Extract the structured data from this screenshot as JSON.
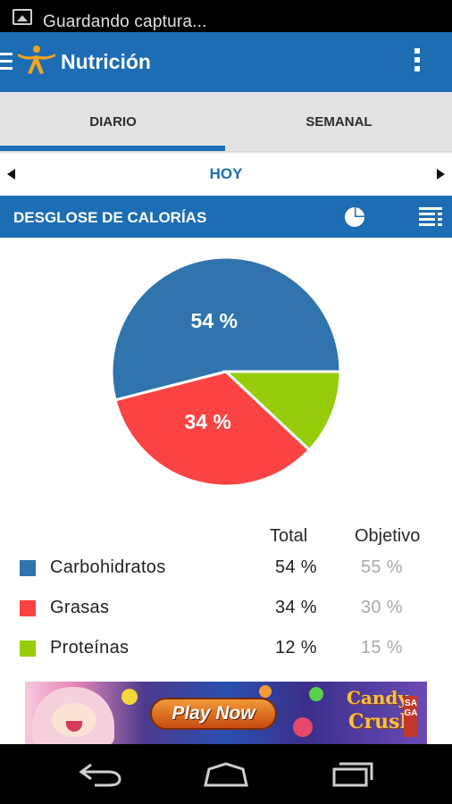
{
  "status_bar": {
    "notification_text": "Guardando captura..."
  },
  "app_bar": {
    "title": "Nutrición",
    "brand_color": "#1c6db3",
    "logo_color": "#f4a21c"
  },
  "tabs": [
    {
      "label": "DIARIO",
      "selected": true
    },
    {
      "label": "SEMANAL",
      "selected": false
    }
  ],
  "date_nav": {
    "label": "HOY"
  },
  "section": {
    "title": "DESGLOSE DE CALORÍAS"
  },
  "chart_data": {
    "type": "pie",
    "slices": [
      {
        "label": "Carbohidratos",
        "value": 54,
        "color": "#2f74ad",
        "display": "54 %"
      },
      {
        "label": "Grasas",
        "value": 34,
        "color": "#fa4444",
        "display": "34 %"
      },
      {
        "label": "Proteínas",
        "value": 12,
        "color": "#97cc0a",
        "display": ""
      }
    ]
  },
  "legend": {
    "col_total": "Total",
    "col_goal": "Objetivo",
    "rows": [
      {
        "name": "Carbohidratos",
        "total": "54 %",
        "goal": "55 %",
        "color": "#2f74ad"
      },
      {
        "name": "Grasas",
        "total": "34 %",
        "goal": "30 %",
        "color": "#fa4444"
      },
      {
        "name": "Proteínas",
        "total": "12 %",
        "goal": "15 %",
        "color": "#97cc0a"
      }
    ]
  },
  "ad": {
    "play_label": "Play Now",
    "logo_line1": "Candy",
    "logo_line2": "Crush",
    "logo_tag": "SAGA"
  }
}
